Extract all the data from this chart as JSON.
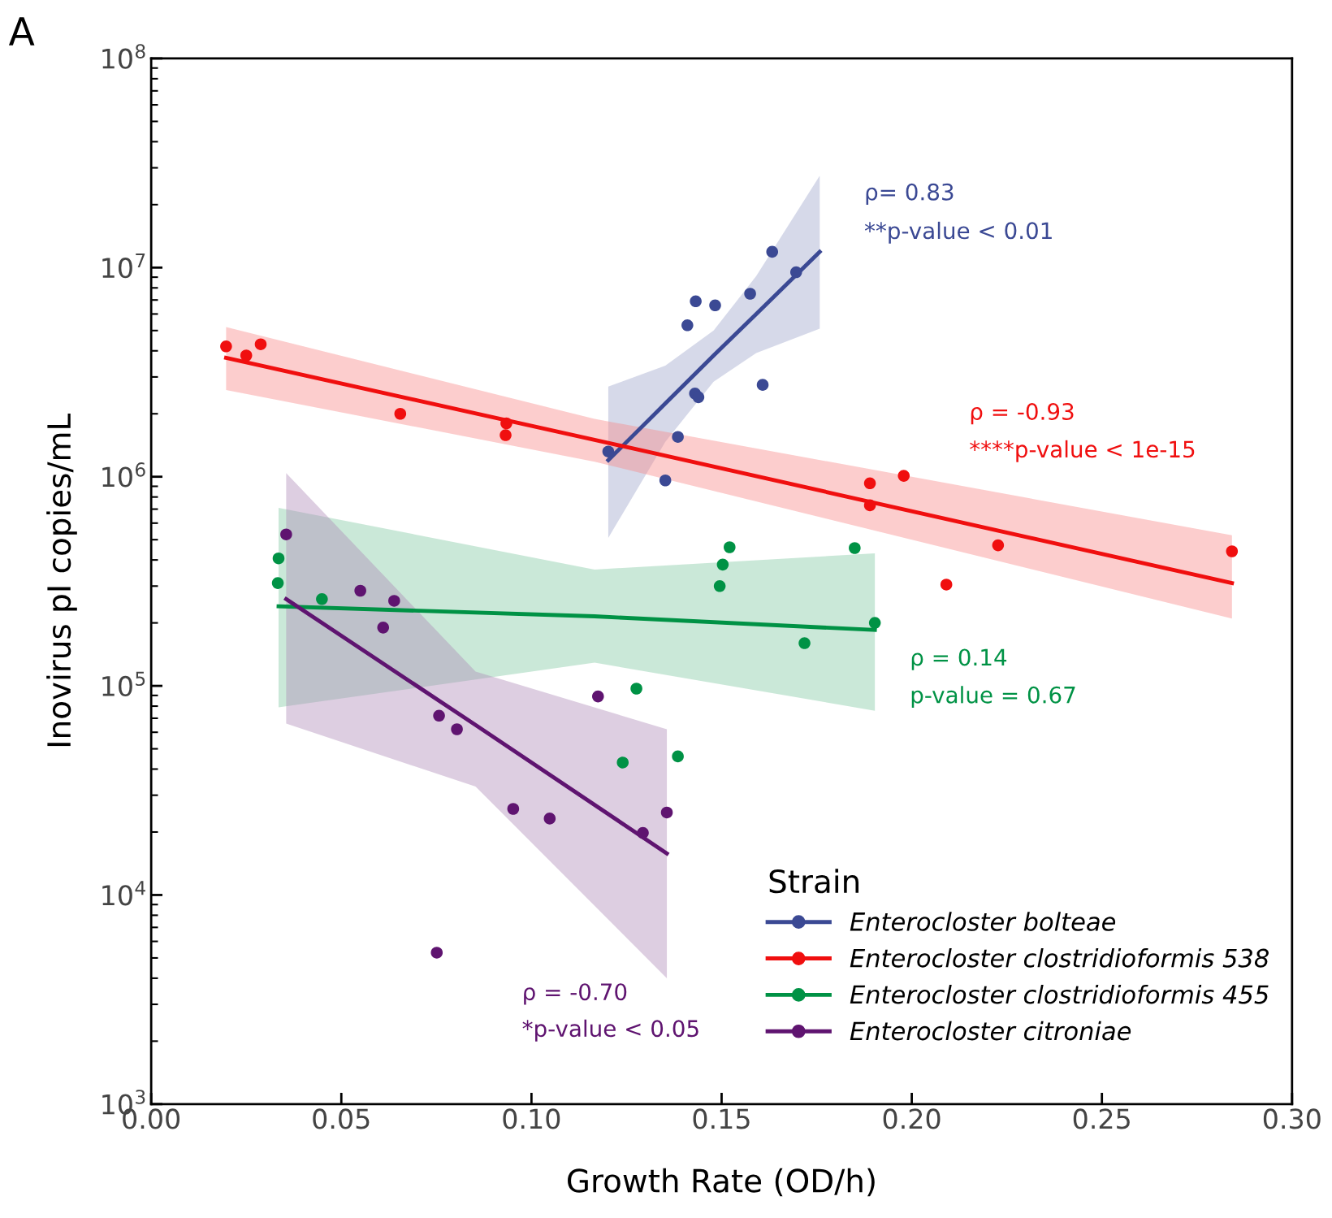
{
  "chart_data": {
    "type": "scatter",
    "xlabel": "Growth Rate (OD/h)",
    "ylabel": "Inovirus pI copies/mL",
    "legend_title": "Strain",
    "legend": "bottom right",
    "log": "y",
    "grid": false,
    "line_style": "solid",
    "xlim": [
      0,
      0.3
    ],
    "xticks": [
      {
        "value": 0,
        "label": "0.00"
      },
      0.05,
      {
        "value": 0.1,
        "label": "0.10"
      },
      0.15,
      {
        "value": 0.2,
        "label": "0.20"
      },
      0.25,
      {
        "value": 0.3,
        "label": "0.30"
      }
    ],
    "ylim": [
      1000,
      100000000
    ],
    "yticks": [
      {
        "value": 1000,
        "label": "10$^{3}$"
      },
      {
        "value": 10000,
        "label": "10$^{4}$"
      },
      {
        "value": 100000,
        "label": "10$^{5}$"
      },
      {
        "value": 1000000,
        "label": "10$^{6}$"
      },
      {
        "value": 10000000,
        "label": "10$^{7}$"
      },
      {
        "value": 100000000,
        "label": "10$^{8}$"
      }
    ],
    "annotations": [
      "A",
      "ρ= 0.83",
      "**p-value < 0.01",
      "ρ = -0.93",
      "****p-value < 1e-15",
      "ρ = 0.14",
      "p-value = 0.67",
      "ρ = -0.70",
      "*p-value < 0.05"
    ],
    "series": [
      {
        "marker": "circle",
        "name": "Enterocloster bolteae",
        "color": "#3b4994",
        "x": [
          0.1202,
          0.1352,
          0.1385,
          0.141,
          0.1432,
          0.143,
          0.1439,
          0.1483,
          0.1575,
          0.1608,
          0.1633,
          0.1696
        ],
        "values": [
          1320000,
          960000,
          1550000,
          5300000,
          6900000,
          2500000,
          2400000,
          6600000,
          7500000,
          2750000,
          11900000,
          9500000
        ]
      },
      {
        "marker": "circle",
        "name": "Enterocloster clostridioformis 538",
        "color": "#f00f0f",
        "x": [
          0.0197,
          0.025,
          0.0288,
          0.0655,
          0.0934,
          0.0932,
          0.189,
          0.189,
          0.1979,
          0.2091,
          0.2227,
          0.2842
        ],
        "values": [
          4200000,
          3800000,
          4300000,
          2000000,
          1800000,
          1580000,
          930000,
          730000,
          1010000,
          305000,
          470000,
          440000
        ]
      },
      {
        "marker": "circle",
        "name": "Enterocloster clostridioformis 455",
        "color": "#009245",
        "x": [
          0.0335,
          0.0333,
          0.0449,
          0.124,
          0.1276,
          0.1385,
          0.1495,
          0.1503,
          0.1521,
          0.1718,
          0.185,
          0.1903
        ],
        "values": [
          407000,
          310000,
          260000,
          43000,
          97000,
          46000,
          300000,
          380000,
          460000,
          160000,
          456000,
          200000
        ]
      },
      {
        "marker": "circle",
        "name": "Enterocloster citroniae",
        "color": "#5f1470",
        "x": [
          0.0355,
          0.055,
          0.061,
          0.0639,
          0.0757,
          0.0804,
          0.1175,
          0.0952,
          0.1048,
          0.1293,
          0.1356,
          0.0751
        ],
        "values": [
          530000,
          285000,
          190000,
          255000,
          72000,
          62000,
          89000,
          25800,
          23200,
          19800,
          24800,
          5300
        ]
      },
      {
        "type": "line",
        "marker": "none",
        "color": "#3b4994",
        "x": [
          0.1202,
          0.1352,
          0.1479,
          0.1591,
          0.1758
        ],
        "values": [
          1200000,
          2240000,
          3800000,
          6000000,
          11900000
        ],
        "lower": [
          510000,
          1470000,
          2850000,
          3900000,
          5100000
        ],
        "upper": [
          2700000,
          3400000,
          5000000,
          9100000,
          27500000
        ]
      },
      {
        "type": "line",
        "marker": "none",
        "color": "#f00f0f",
        "x": [
          0.0197,
          0.1166,
          0.2842
        ],
        "values": [
          3700000,
          1500000,
          310000
        ],
        "lower": [
          2600000,
          1180000,
          210000
        ],
        "upper": [
          5200000,
          1890000,
          525000
        ]
      },
      {
        "type": "line",
        "marker": "none",
        "color": "#009245",
        "x": [
          0.0335,
          0.1166,
          0.1903
        ],
        "values": [
          240000,
          215000,
          185000
        ],
        "lower": [
          79000,
          129000,
          76000
        ],
        "upper": [
          710000,
          360000,
          430000
        ]
      },
      {
        "type": "line",
        "marker": "none",
        "color": "#5f1470",
        "x": [
          0.0355,
          0.0853,
          0.1356
        ],
        "values": [
          260000,
          65000,
          15800
        ],
        "lower": [
          66000,
          33000,
          4000
        ],
        "upper": [
          1040000,
          117000,
          62000
        ]
      }
    ]
  }
}
